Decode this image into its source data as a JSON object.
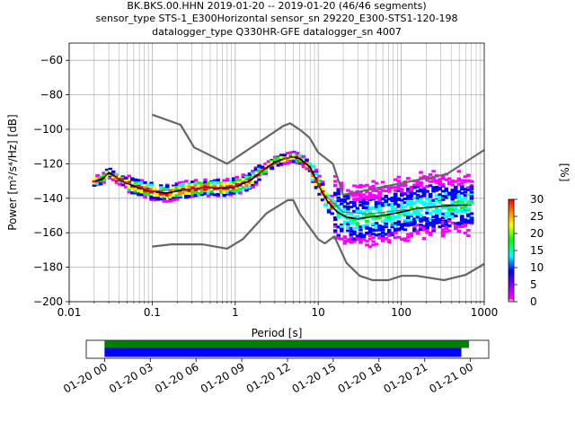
{
  "chart_data": [
    {
      "type": "heatmap",
      "title_lines": [
        "BK.BKS.00.HHN   2019-01-20 -- 2019-01-20  (46/46 segments)",
        "sensor_type STS-1_E300Horizontal sensor_sn 29220_E300-STS1-120-198",
        "datalogger_type Q330HR-GFE datalogger_sn 4007"
      ],
      "xlabel": "Period [s]",
      "ylabel": "Power [m²/s⁴/Hz] [dB]",
      "xscale": "log",
      "xlim": [
        0.01,
        1000
      ],
      "ylim": [
        -200,
        -50
      ],
      "x_ticks": [
        0.01,
        0.1,
        1,
        10,
        100,
        1000
      ],
      "x_tick_labels": [
        "0.01",
        "0.1",
        "1",
        "10",
        "100",
        "1000"
      ],
      "y_ticks": [
        -200,
        -180,
        -160,
        -140,
        -120,
        -100,
        -80,
        -60
      ],
      "y_tick_labels": [
        "−200",
        "−180",
        "−160",
        "−140",
        "−120",
        "−100",
        "−80",
        "−60"
      ],
      "grid": true,
      "colorbar": {
        "label": "[%]",
        "range": [
          0,
          30
        ],
        "ticks": [
          0,
          5,
          10,
          15,
          20,
          25,
          30
        ],
        "tick_labels": [
          "0",
          "5",
          "10",
          "15",
          "20",
          "25",
          "30"
        ],
        "colors": [
          "#ffffff",
          "#ff00ff",
          "#0000ff",
          "#00ffff",
          "#00ff00",
          "#ffff00",
          "#ff7f00",
          "#ff0000"
        ]
      },
      "series": [
        {
          "role": "new-high-noise-model",
          "color": "#666666",
          "x": [
            0.1,
            0.22,
            0.32,
            0.8,
            3.8,
            4.6,
            6.3,
            7.9,
            10,
            15,
            20,
            354,
            1000
          ],
          "y": [
            -91.5,
            -97.4,
            -110.5,
            -120,
            -98,
            -96.5,
            -101,
            -105,
            -113.5,
            -120,
            -138,
            -126,
            -112
          ]
        },
        {
          "role": "new-low-noise-model",
          "color": "#666666",
          "x": [
            0.1,
            0.17,
            0.4,
            0.8,
            1.24,
            2.4,
            4.3,
            5,
            6,
            10,
            12,
            15.6,
            21.9,
            31.6,
            45,
            70,
            101,
            154,
            328,
            600,
            1000
          ],
          "y": [
            -168,
            -166.7,
            -166.7,
            -169.2,
            -163.7,
            -148.6,
            -141.1,
            -141.1,
            -149,
            -163.8,
            -166.2,
            -162.1,
            -177.5,
            -185,
            -187.5,
            -187.5,
            -185,
            -185,
            -187.5,
            -184.4,
            -178
          ]
        },
        {
          "role": "mode",
          "color": "#000000",
          "x": [
            0.02,
            0.025,
            0.03,
            0.04,
            0.06,
            0.1,
            0.15,
            0.25,
            0.4,
            0.7,
            1,
            1.5,
            2,
            3,
            4,
            5,
            6,
            8,
            10,
            13,
            17,
            22,
            30,
            40,
            60,
            100,
            150,
            250,
            400,
            700
          ],
          "y": [
            -130,
            -129,
            -125,
            -129,
            -133,
            -136,
            -137,
            -135,
            -134,
            -134,
            -133,
            -130,
            -125,
            -119,
            -117,
            -116,
            -117,
            -122,
            -132,
            -142,
            -148,
            -151,
            -152,
            -151,
            -150,
            -148,
            -146,
            -145,
            -144,
            -144
          ]
        },
        {
          "role": "mean",
          "color": "#666666",
          "x": [
            0.02,
            0.03,
            0.05,
            0.1,
            0.2,
            0.5,
            1,
            2,
            4,
            5,
            8,
            12,
            20,
            40,
            100,
            300,
            700
          ],
          "y": [
            -130,
            -126,
            -131,
            -136,
            -135,
            -134,
            -133,
            -125,
            -117,
            -116,
            -124,
            -138,
            -148,
            -149,
            -147,
            -145,
            -144
          ]
        }
      ]
    },
    {
      "type": "timeline",
      "x_tick_labels": [
        "01-20 00",
        "01-20 03",
        "01-20 06",
        "01-20 09",
        "01-20 12",
        "01-20 15",
        "01-20 18",
        "01-20 21",
        "01-21 00"
      ],
      "x_ticks_hours": [
        0,
        3,
        6,
        9,
        12,
        15,
        18,
        21,
        24
      ],
      "xlim_hours": [
        -1.2,
        25.2
      ],
      "bars": [
        {
          "name": "data",
          "color": "#008000",
          "start": 0,
          "end": 23.9
        },
        {
          "name": "psd",
          "color": "#0000ff",
          "start": 0,
          "end": 23.4
        }
      ]
    }
  ]
}
